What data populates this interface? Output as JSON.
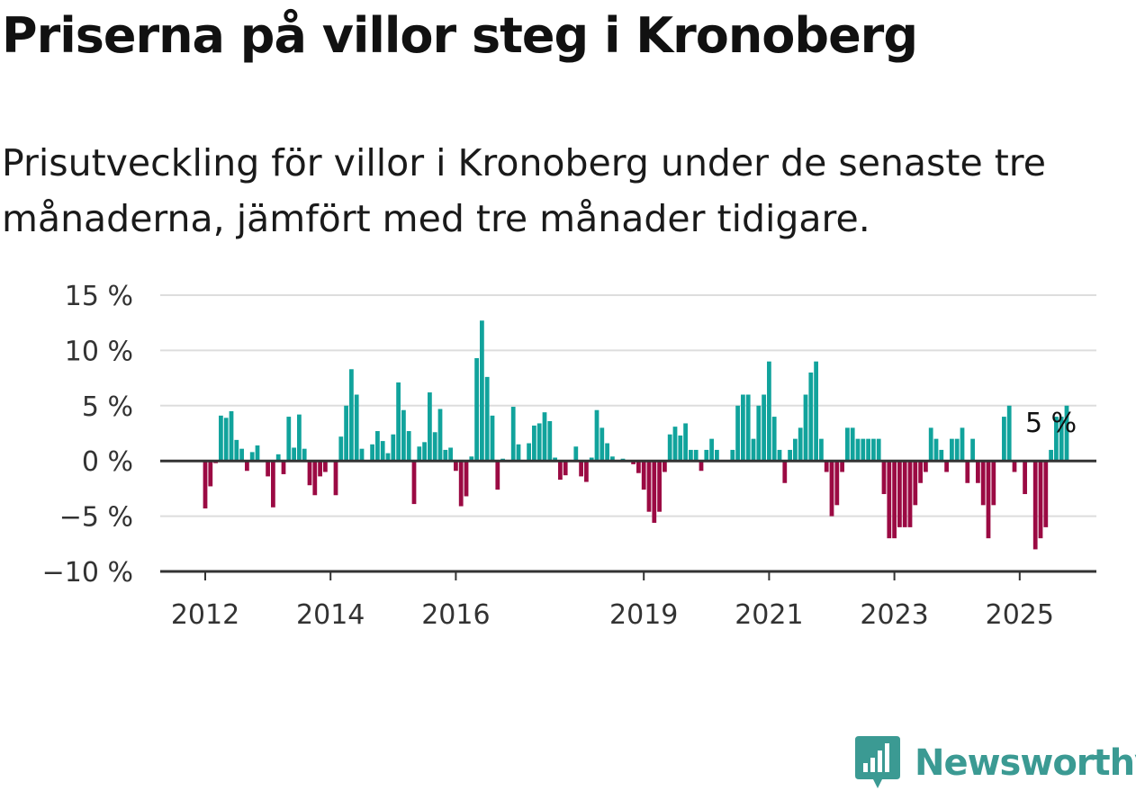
{
  "title": "Priserna på villor steg i Kronoberg",
  "subtitle": "Prisutveckling för villor i Kronoberg under de senaste tre månaderna, jämfört med tre månader tidigare.",
  "brand": {
    "name": "Newsworthy",
    "color": "#3b9a93"
  },
  "colors": {
    "positive": "#11a39c",
    "negative": "#9b0a43",
    "grid": "#dddddd",
    "axis": "#333333"
  },
  "chart_data": {
    "type": "bar",
    "title": "",
    "xlabel": "",
    "ylabel": "",
    "ylim": [
      -10,
      15
    ],
    "y_ticks": [
      {
        "value": 15,
        "label": "15 %"
      },
      {
        "value": 10,
        "label": "10 %"
      },
      {
        "value": 5,
        "label": "5 %"
      },
      {
        "value": 0,
        "label": "0 %"
      },
      {
        "value": -5,
        "label": "−5 %"
      },
      {
        "value": -10,
        "label": "−10 %"
      }
    ],
    "x_ticks": [
      {
        "year": 2012,
        "label": "2012"
      },
      {
        "year": 2014,
        "label": "2014"
      },
      {
        "year": 2016,
        "label": "2016"
      },
      {
        "year": 2019,
        "label": "2019"
      },
      {
        "year": 2021,
        "label": "2021"
      },
      {
        "year": 2023,
        "label": "2023"
      },
      {
        "year": 2025,
        "label": "2025"
      }
    ],
    "grid": true,
    "start": "2012-01",
    "annotation": {
      "label": "5 %",
      "month": "2025-07"
    },
    "values": [
      -4.3,
      -2.3,
      -0.2,
      4.1,
      3.9,
      4.5,
      1.9,
      1.1,
      -0.9,
      0.8,
      1.4,
      0,
      -1.4,
      -4.2,
      0.6,
      -1.2,
      4.0,
      1.2,
      4.2,
      1.1,
      -2.2,
      -3.1,
      -1.4,
      -1.0,
      0,
      -3.1,
      2.2,
      5.0,
      8.3,
      6.0,
      1.1,
      0,
      1.5,
      2.7,
      1.8,
      0.7,
      2.4,
      7.1,
      4.6,
      2.7,
      -3.9,
      1.3,
      1.7,
      6.2,
      2.6,
      4.7,
      1.0,
      1.2,
      -0.9,
      -4.1,
      -3.2,
      0.4,
      9.3,
      12.7,
      7.6,
      4.1,
      -2.6,
      0.2,
      0.1,
      4.9,
      1.5,
      0,
      1.6,
      3.2,
      3.4,
      4.4,
      3.6,
      0.3,
      -1.7,
      -1.3,
      0,
      1.3,
      -1.4,
      -1.9,
      0.3,
      4.6,
      3.0,
      1.6,
      0.4,
      0,
      0.2,
      0,
      -0.3,
      -1.1,
      -2.6,
      -4.6,
      -5.6,
      -4.6,
      -1.0,
      2.4,
      3.1,
      2.3,
      3.4,
      1.0,
      1.0,
      -0.9,
      1.0,
      2.0,
      1.0,
      0,
      0,
      1.0,
      5.0,
      6.0,
      6.0,
      2.0,
      5.0,
      6.0,
      9.0,
      4.0,
      1.0,
      -2.0,
      1.0,
      2.0,
      3.0,
      6.0,
      8.0,
      9.0,
      2.0,
      -1.0,
      -5.0,
      -4.0,
      -1.0,
      3.0,
      3.0,
      2.0,
      2.0,
      2.0,
      2.0,
      2.0,
      -3.0,
      -7.0,
      -7.0,
      -6.0,
      -6.0,
      -6.0,
      -4.0,
      -2.0,
      -1.0,
      3.0,
      2.0,
      1.0,
      -1.0,
      2.0,
      2.0,
      3.0,
      -2.0,
      2.0,
      -2.0,
      -4.0,
      -7.0,
      -4.0,
      0,
      4.0,
      5.0,
      -1.0,
      0,
      -3.0,
      0,
      -8.0,
      -7.0,
      -6.0,
      1.0,
      4.0,
      4.0,
      5.0
    ]
  }
}
